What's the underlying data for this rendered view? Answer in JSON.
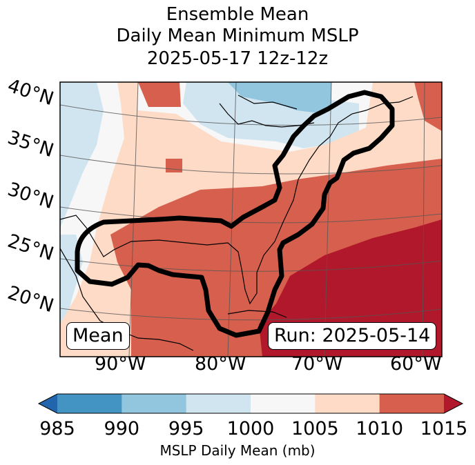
{
  "title": {
    "line1": "Ensemble Mean",
    "line2": "Daily Mean Minimum MSLP",
    "line3": "2025-05-17 12z-12z"
  },
  "map": {
    "lat_labels": [
      "40°N",
      "35°N",
      "30°N",
      "25°N",
      "20°N"
    ],
    "lon_labels": [
      "90°W",
      "80°W",
      "70°W",
      "60°W"
    ],
    "mean_box": "Mean",
    "run_box": "Run: 2025-05-14"
  },
  "colorbar": {
    "ticks": [
      "985",
      "990",
      "995",
      "1000",
      "1005",
      "1010",
      "1015"
    ],
    "label": "MSLP Daily Mean (mb)",
    "colors": [
      "#2166ac",
      "#4393c3",
      "#92c5de",
      "#d1e5f0",
      "#f7f7f7",
      "#fddbc7",
      "#d6604d",
      "#b2182b"
    ],
    "extend": "both"
  }
}
